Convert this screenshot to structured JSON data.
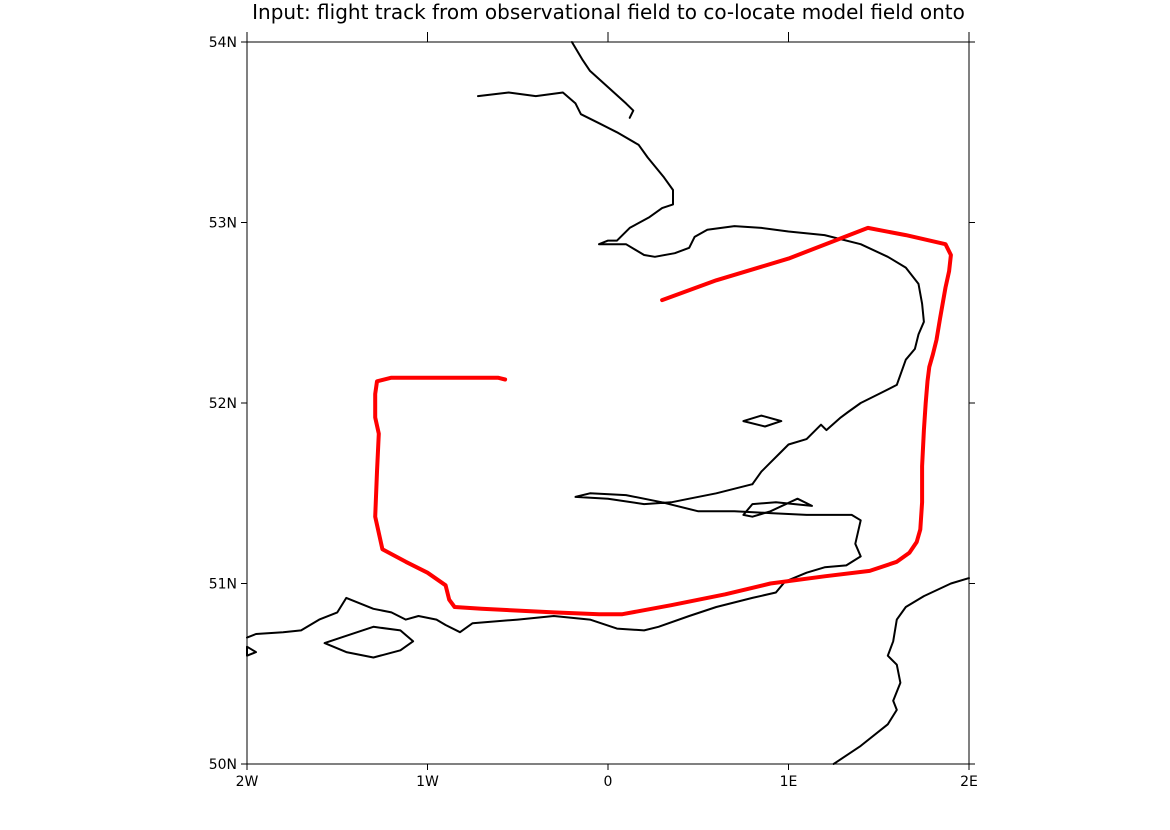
{
  "title": "Input: flight track from observational field to co-locate model field onto",
  "axes": {
    "x_ticks": [
      {
        "label": "2W",
        "lon": -2
      },
      {
        "label": "1W",
        "lon": -1
      },
      {
        "label": "0",
        "lon": 0
      },
      {
        "label": "1E",
        "lon": 1
      },
      {
        "label": "2E",
        "lon": 2
      }
    ],
    "y_ticks": [
      {
        "label": "54N",
        "lat": 54
      },
      {
        "label": "53N",
        "lat": 53
      },
      {
        "label": "52N",
        "lat": 52
      },
      {
        "label": "51N",
        "lat": 51
      },
      {
        "label": "50N",
        "lat": 50
      }
    ],
    "lon_range": [
      -2,
      2
    ],
    "lat_range": [
      50,
      54
    ]
  },
  "colors": {
    "track": "#ff0000",
    "coastline": "#000000",
    "frame": "#000000"
  },
  "track": [
    [
      -0.57,
      52.13
    ],
    [
      -0.61,
      52.14
    ],
    [
      -0.9,
      52.14
    ],
    [
      -1.2,
      52.14
    ],
    [
      -1.28,
      52.12
    ],
    [
      -1.29,
      52.05
    ],
    [
      -1.29,
      51.92
    ],
    [
      -1.27,
      51.83
    ],
    [
      -1.28,
      51.62
    ],
    [
      -1.29,
      51.37
    ],
    [
      -1.25,
      51.19
    ],
    [
      -1.12,
      51.12
    ],
    [
      -1.0,
      51.06
    ],
    [
      -0.9,
      50.99
    ],
    [
      -0.88,
      50.91
    ],
    [
      -0.85,
      50.87
    ],
    [
      -0.7,
      50.86
    ],
    [
      -0.3,
      50.84
    ],
    [
      -0.05,
      50.83
    ],
    [
      0.08,
      50.83
    ],
    [
      0.35,
      50.88
    ],
    [
      0.65,
      50.94
    ],
    [
      0.9,
      51.0
    ],
    [
      1.2,
      51.04
    ],
    [
      1.45,
      51.07
    ],
    [
      1.6,
      51.12
    ],
    [
      1.67,
      51.17
    ],
    [
      1.71,
      51.23
    ],
    [
      1.73,
      51.3
    ],
    [
      1.74,
      51.45
    ],
    [
      1.74,
      51.65
    ],
    [
      1.75,
      51.85
    ],
    [
      1.76,
      52.0
    ],
    [
      1.77,
      52.12
    ],
    [
      1.78,
      52.2
    ],
    [
      1.8,
      52.27
    ],
    [
      1.82,
      52.35
    ],
    [
      1.84,
      52.47
    ],
    [
      1.87,
      52.64
    ],
    [
      1.89,
      52.73
    ],
    [
      1.9,
      52.82
    ],
    [
      1.87,
      52.88
    ],
    [
      1.65,
      52.93
    ],
    [
      1.44,
      52.97
    ],
    [
      1.0,
      52.8
    ],
    [
      0.6,
      52.68
    ],
    [
      0.3,
      52.57
    ]
  ],
  "coastlines": [
    [
      [
        -0.2,
        54.0
      ],
      [
        -0.14,
        53.9
      ],
      [
        -0.1,
        53.84
      ],
      [
        0.0,
        53.75
      ],
      [
        0.1,
        53.66
      ],
      [
        0.14,
        53.62
      ],
      [
        0.12,
        53.58
      ]
    ],
    [
      [
        -0.72,
        53.7
      ],
      [
        -0.55,
        53.72
      ],
      [
        -0.4,
        53.7
      ],
      [
        -0.25,
        53.72
      ],
      [
        -0.18,
        53.66
      ],
      [
        -0.15,
        53.6
      ],
      [
        -0.05,
        53.55
      ],
      [
        0.05,
        53.5
      ],
      [
        0.17,
        53.43
      ],
      [
        0.22,
        53.36
      ],
      [
        0.31,
        53.25
      ],
      [
        0.36,
        53.18
      ],
      [
        0.36,
        53.1
      ],
      [
        0.3,
        53.08
      ],
      [
        0.23,
        53.03
      ],
      [
        0.12,
        52.97
      ],
      [
        0.05,
        52.9
      ],
      [
        0.0,
        52.9
      ],
      [
        -0.05,
        52.88
      ],
      [
        0.1,
        52.88
      ],
      [
        0.2,
        52.82
      ],
      [
        0.26,
        52.81
      ],
      [
        0.37,
        52.83
      ],
      [
        0.45,
        52.86
      ],
      [
        0.48,
        52.92
      ],
      [
        0.55,
        52.96
      ],
      [
        0.7,
        52.98
      ],
      [
        0.85,
        52.97
      ],
      [
        1.0,
        52.95
      ],
      [
        1.2,
        52.93
      ],
      [
        1.4,
        52.88
      ],
      [
        1.55,
        52.81
      ],
      [
        1.65,
        52.75
      ],
      [
        1.72,
        52.66
      ],
      [
        1.74,
        52.55
      ],
      [
        1.75,
        52.45
      ],
      [
        1.72,
        52.38
      ],
      [
        1.7,
        52.3
      ],
      [
        1.65,
        52.24
      ],
      [
        1.6,
        52.1
      ],
      [
        1.5,
        52.05
      ],
      [
        1.4,
        52.0
      ],
      [
        1.33,
        51.95
      ],
      [
        1.29,
        51.92
      ],
      [
        1.21,
        51.85
      ],
      [
        1.18,
        51.88
      ],
      [
        1.1,
        51.8
      ],
      [
        1.0,
        51.77
      ],
      [
        0.95,
        51.72
      ],
      [
        0.9,
        51.67
      ],
      [
        0.85,
        51.62
      ],
      [
        0.8,
        51.55
      ]
    ],
    [
      [
        0.8,
        51.55
      ],
      [
        0.6,
        51.5
      ],
      [
        0.45,
        51.47
      ],
      [
        0.35,
        51.45
      ],
      [
        0.2,
        51.44
      ],
      [
        0.0,
        51.47
      ],
      [
        -0.18,
        51.48
      ],
      [
        -0.1,
        51.5
      ],
      [
        0.1,
        51.49
      ],
      [
        0.3,
        51.45
      ],
      [
        0.5,
        51.4
      ],
      [
        0.7,
        51.4
      ],
      [
        0.9,
        51.39
      ],
      [
        1.1,
        51.38
      ],
      [
        1.35,
        51.38
      ],
      [
        1.4,
        51.35
      ],
      [
        1.37,
        51.22
      ],
      [
        1.4,
        51.15
      ],
      [
        1.32,
        51.1
      ],
      [
        1.2,
        51.09
      ],
      [
        1.1,
        51.06
      ],
      [
        0.98,
        51.01
      ],
      [
        0.93,
        50.95
      ],
      [
        0.8,
        50.92
      ],
      [
        0.6,
        50.87
      ],
      [
        0.45,
        50.82
      ],
      [
        0.28,
        50.76
      ],
      [
        0.2,
        50.74
      ],
      [
        0.05,
        50.75
      ],
      [
        -0.1,
        50.8
      ],
      [
        -0.3,
        50.82
      ],
      [
        -0.5,
        50.8
      ],
      [
        -0.75,
        50.78
      ],
      [
        -0.82,
        50.73
      ],
      [
        -0.9,
        50.77
      ],
      [
        -0.95,
        50.8
      ],
      [
        -1.05,
        50.82
      ],
      [
        -1.12,
        50.8
      ],
      [
        -1.2,
        50.84
      ],
      [
        -1.3,
        50.86
      ],
      [
        -1.45,
        50.92
      ],
      [
        -1.5,
        50.84
      ],
      [
        -1.6,
        50.8
      ],
      [
        -1.7,
        50.74
      ],
      [
        -1.8,
        50.73
      ],
      [
        -1.95,
        50.72
      ],
      [
        -2.0,
        50.7
      ]
    ]
  ],
  "islands": [
    [
      [
        -1.57,
        50.67
      ],
      [
        -1.45,
        50.71
      ],
      [
        -1.3,
        50.76
      ],
      [
        -1.15,
        50.74
      ],
      [
        -1.08,
        50.68
      ],
      [
        -1.15,
        50.63
      ],
      [
        -1.3,
        50.59
      ],
      [
        -1.45,
        50.62
      ],
      [
        -1.57,
        50.67
      ]
    ],
    [
      [
        1.13,
        51.43
      ],
      [
        1.05,
        51.47
      ],
      [
        0.9,
        51.4
      ],
      [
        0.8,
        51.37
      ],
      [
        0.75,
        51.38
      ],
      [
        0.8,
        51.44
      ],
      [
        0.93,
        51.45
      ],
      [
        1.13,
        51.43
      ]
    ],
    [
      [
        0.75,
        51.9
      ],
      [
        0.87,
        51.87
      ],
      [
        0.96,
        51.9
      ],
      [
        0.85,
        51.93
      ],
      [
        0.75,
        51.9
      ]
    ],
    [
      [
        -2.0,
        50.6
      ],
      [
        -1.95,
        50.62
      ],
      [
        -2.0,
        50.65
      ]
    ]
  ],
  "france_coast": [
    [
      [
        1.25,
        50.0
      ],
      [
        1.4,
        50.1
      ],
      [
        1.55,
        50.22
      ],
      [
        1.6,
        50.3
      ],
      [
        1.58,
        50.35
      ],
      [
        1.62,
        50.45
      ],
      [
        1.6,
        50.55
      ],
      [
        1.55,
        50.6
      ],
      [
        1.58,
        50.68
      ],
      [
        1.6,
        50.8
      ],
      [
        1.65,
        50.87
      ],
      [
        1.75,
        50.93
      ],
      [
        1.9,
        51.0
      ],
      [
        2.0,
        51.03
      ]
    ]
  ]
}
